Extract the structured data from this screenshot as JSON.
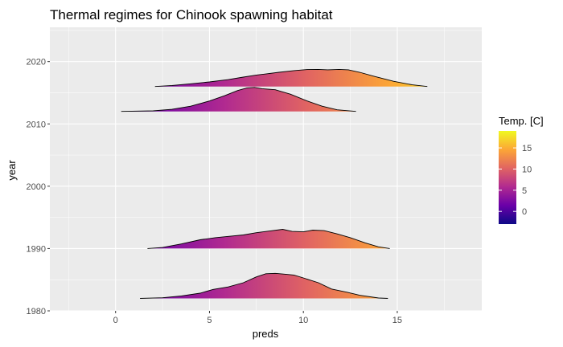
{
  "chart_data": {
    "type": "area",
    "title": "Thermal regimes for Chinook spawning habitat",
    "xlabel": "preds",
    "ylabel": "year",
    "xlim": [
      -3.5,
      19.5
    ],
    "ylim": [
      1980,
      2025.5
    ],
    "x_ticks": [
      0,
      5,
      10,
      15
    ],
    "x_tick_labels": [
      "0",
      "5",
      "10",
      "15"
    ],
    "y_ticks": [
      1980,
      1990,
      2000,
      2010,
      2020
    ],
    "y_tick_labels": [
      "1980",
      "1990",
      "2000",
      "2010",
      "2020"
    ],
    "grid": true,
    "legend": {
      "title": "Temp. [C]",
      "position": "right",
      "range": [
        -3,
        19
      ],
      "ticks": [
        0,
        5,
        10,
        15
      ],
      "tick_labels": [
        "0",
        "5",
        "10",
        "15"
      ],
      "colors": [
        "#0d0887",
        "#6a00a8",
        "#b12a90",
        "#e16462",
        "#fca636",
        "#f0f921"
      ]
    },
    "series": [
      {
        "baseline": 2016,
        "points": [
          [
            2.1,
            0.0
          ],
          [
            3.0,
            0.05
          ],
          [
            4.0,
            0.13
          ],
          [
            5.0,
            0.22
          ],
          [
            6.0,
            0.33
          ],
          [
            6.8,
            0.45
          ],
          [
            7.5,
            0.55
          ],
          [
            8.0,
            0.6
          ],
          [
            8.7,
            0.68
          ],
          [
            9.5,
            0.76
          ],
          [
            10.2,
            0.81
          ],
          [
            10.8,
            0.82
          ],
          [
            11.3,
            0.8
          ],
          [
            11.9,
            0.82
          ],
          [
            12.4,
            0.8
          ],
          [
            13.0,
            0.68
          ],
          [
            13.8,
            0.48
          ],
          [
            14.8,
            0.25
          ],
          [
            15.8,
            0.08
          ],
          [
            16.6,
            0.0
          ]
        ]
      },
      {
        "baseline": 2012,
        "points": [
          [
            0.3,
            0.0
          ],
          [
            2.0,
            0.03
          ],
          [
            3.0,
            0.1
          ],
          [
            4.0,
            0.25
          ],
          [
            5.0,
            0.5
          ],
          [
            5.8,
            0.75
          ],
          [
            6.5,
            1.0
          ],
          [
            7.0,
            1.13
          ],
          [
            7.4,
            1.15
          ],
          [
            7.8,
            1.09
          ],
          [
            8.5,
            1.04
          ],
          [
            9.3,
            0.83
          ],
          [
            10.2,
            0.5
          ],
          [
            11.0,
            0.25
          ],
          [
            11.8,
            0.08
          ],
          [
            12.8,
            0.0
          ]
        ]
      },
      {
        "baseline": 1990,
        "points": [
          [
            1.7,
            0.0
          ],
          [
            2.5,
            0.05
          ],
          [
            3.5,
            0.22
          ],
          [
            4.5,
            0.42
          ],
          [
            5.3,
            0.52
          ],
          [
            6.0,
            0.58
          ],
          [
            6.8,
            0.65
          ],
          [
            7.5,
            0.76
          ],
          [
            8.2,
            0.84
          ],
          [
            8.9,
            0.92
          ],
          [
            9.4,
            0.82
          ],
          [
            10.0,
            0.8
          ],
          [
            10.5,
            0.88
          ],
          [
            11.1,
            0.86
          ],
          [
            11.8,
            0.7
          ],
          [
            12.5,
            0.52
          ],
          [
            13.3,
            0.27
          ],
          [
            14.0,
            0.08
          ],
          [
            14.6,
            0.0
          ]
        ]
      },
      {
        "baseline": 1982,
        "points": [
          [
            1.3,
            0.0
          ],
          [
            2.5,
            0.03
          ],
          [
            3.5,
            0.12
          ],
          [
            4.5,
            0.25
          ],
          [
            5.2,
            0.43
          ],
          [
            6.0,
            0.55
          ],
          [
            6.8,
            0.75
          ],
          [
            7.5,
            1.03
          ],
          [
            8.0,
            1.18
          ],
          [
            8.5,
            1.2
          ],
          [
            9.0,
            1.16
          ],
          [
            9.5,
            1.12
          ],
          [
            10.0,
            0.98
          ],
          [
            10.8,
            0.75
          ],
          [
            11.5,
            0.45
          ],
          [
            12.3,
            0.3
          ],
          [
            13.0,
            0.15
          ],
          [
            14.0,
            0.02
          ],
          [
            14.5,
            0.0
          ]
        ]
      }
    ]
  }
}
